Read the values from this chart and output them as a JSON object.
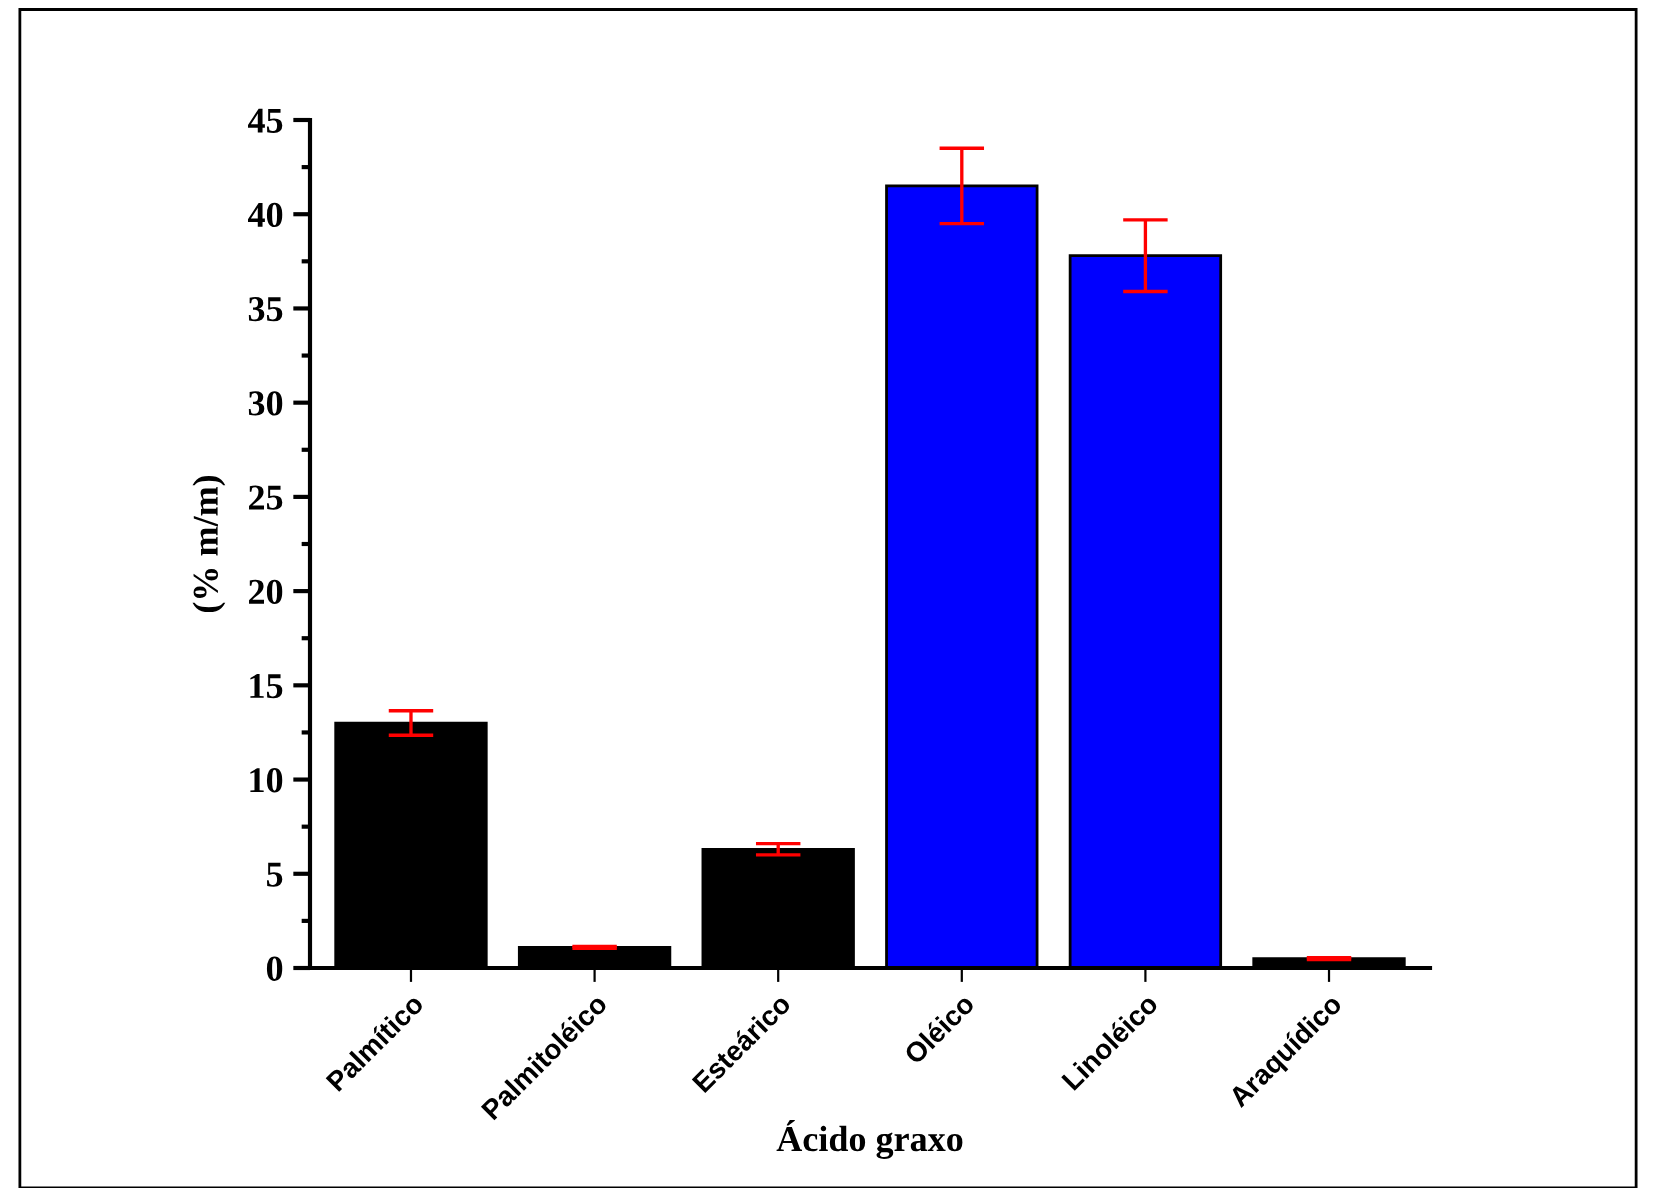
{
  "chart_data": {
    "type": "bar",
    "xlabel": "Ácido graxo",
    "ylabel": "(% m/m)",
    "categories": [
      "Palmítico",
      "Palmitoléico",
      "Esteárico",
      "Oléico",
      "Linoléico",
      "Araquídico"
    ],
    "values": [
      13.0,
      1.1,
      6.3,
      41.5,
      37.8,
      0.5
    ],
    "errors": [
      0.65,
      0.05,
      0.3,
      2.0,
      1.9,
      0.05
    ],
    "colors": [
      "#000000",
      "#000000",
      "#000000",
      "#0000ff",
      "#0000ff",
      "#000000"
    ],
    "ylim": [
      0,
      45
    ],
    "yticks": [
      0,
      5,
      10,
      15,
      20,
      25,
      30,
      35,
      40,
      45
    ],
    "grid": false,
    "legend": false
  }
}
